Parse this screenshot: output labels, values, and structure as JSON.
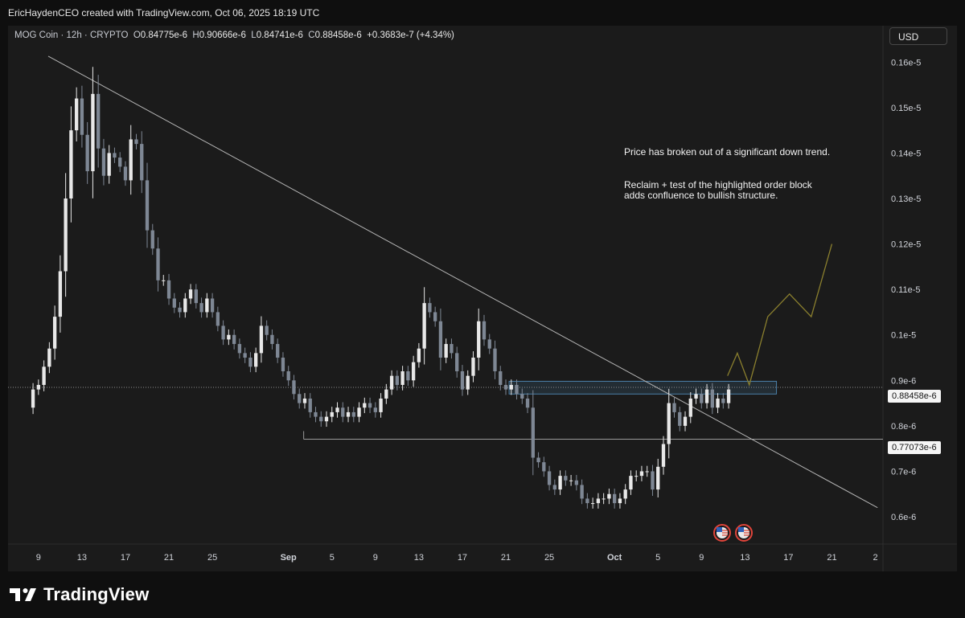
{
  "header": {
    "credit": "EricHaydenCEO created with TradingView.com, Oct 06, 2025 18:19 UTC"
  },
  "legend": {
    "symbol": "MOG Coin · 12h · CRYPTO",
    "o_key": "O",
    "o_val": "0.84775e-6",
    "h_key": "H",
    "h_val": "0.90666e-6",
    "l_key": "L",
    "l_val": "0.84741e-6",
    "c_key": "C",
    "c_val": "0.88458e-6",
    "change": "+0.3683e-7 (+4.34%)"
  },
  "currency_button": "USD",
  "annotations": {
    "note1": "Price has broken out of a significant down trend.",
    "note2_line1": "Reclaim + test of the highlighted order block",
    "note2_line2": "adds confluence to bullish structure."
  },
  "price_tags": {
    "current": "0.88458e-6",
    "level": "0.77073e-6"
  },
  "footer": {
    "brand": "TradingView"
  },
  "colors": {
    "up": "#e8e8e8",
    "down": "#7e8794",
    "projection": "#8a7f2e",
    "order_block": "#4a7fa8",
    "trendline": "#b5b5b5"
  },
  "chart_data": {
    "type": "candlestick",
    "symbol": "MOG Coin",
    "interval": "12h",
    "y_tick_labels": [
      "0.16e-5",
      "0.15e-5",
      "0.14e-5",
      "0.13e-5",
      "0.12e-5",
      "0.11e-5",
      "0.1e-5",
      "0.9e-6",
      "0.8e-6",
      "0.7e-6",
      "0.6e-6"
    ],
    "y_ticks": [
      1.6,
      1.5,
      1.4,
      1.3,
      1.2,
      1.1,
      1.0,
      0.9,
      0.8,
      0.7,
      0.6
    ],
    "y_unit": "e-6",
    "ylim": [
      0.54,
      1.68
    ],
    "x_tick_labels": [
      "9",
      "13",
      "17",
      "21",
      "25",
      "Sep",
      "5",
      "9",
      "13",
      "17",
      "21",
      "25",
      "Oct",
      "5",
      "9",
      "13",
      "17",
      "21",
      "2"
    ],
    "x_tick_days": [
      9,
      13,
      17,
      21,
      25,
      32,
      36,
      40,
      44,
      48,
      52,
      56,
      62,
      66,
      70,
      74,
      78,
      82,
      86
    ],
    "xlim": [
      6.2,
      86.7
    ],
    "close_series": [
      [
        8.0,
        0.84
      ],
      [
        8.5,
        0.88
      ],
      [
        9.0,
        0.89
      ],
      [
        9.5,
        0.93
      ],
      [
        10.0,
        0.97
      ],
      [
        10.5,
        1.04
      ],
      [
        11.0,
        1.14
      ],
      [
        11.5,
        1.3
      ],
      [
        12.0,
        1.45
      ],
      [
        12.5,
        1.52
      ],
      [
        13.0,
        1.44
      ],
      [
        13.5,
        1.36
      ],
      [
        14.0,
        1.53
      ],
      [
        14.5,
        1.41
      ],
      [
        15.0,
        1.35
      ],
      [
        15.5,
        1.4
      ],
      [
        16.0,
        1.39
      ],
      [
        16.5,
        1.37
      ],
      [
        17.0,
        1.34
      ],
      [
        17.5,
        1.43
      ],
      [
        18.0,
        1.42
      ],
      [
        18.5,
        1.34
      ],
      [
        19.0,
        1.23
      ],
      [
        19.5,
        1.19
      ],
      [
        20.0,
        1.12
      ],
      [
        20.5,
        1.12
      ],
      [
        21.0,
        1.08
      ],
      [
        21.5,
        1.06
      ],
      [
        22.0,
        1.05
      ],
      [
        22.5,
        1.08
      ],
      [
        23.0,
        1.1
      ],
      [
        23.5,
        1.07
      ],
      [
        24.0,
        1.05
      ],
      [
        24.5,
        1.08
      ],
      [
        25.0,
        1.05
      ],
      [
        25.5,
        1.02
      ],
      [
        26.0,
        0.99
      ],
      [
        26.5,
        1.0
      ],
      [
        27.0,
        0.98
      ],
      [
        27.5,
        0.96
      ],
      [
        28.0,
        0.95
      ],
      [
        28.5,
        0.93
      ],
      [
        29.0,
        0.96
      ],
      [
        29.5,
        1.02
      ],
      [
        30.0,
        1.0
      ],
      [
        30.5,
        0.98
      ],
      [
        31.0,
        0.95
      ],
      [
        31.5,
        0.92
      ],
      [
        32.0,
        0.9
      ],
      [
        32.5,
        0.87
      ],
      [
        33.0,
        0.85
      ],
      [
        33.5,
        0.86
      ],
      [
        34.0,
        0.83
      ],
      [
        34.5,
        0.82
      ],
      [
        35.0,
        0.81
      ],
      [
        35.5,
        0.82
      ],
      [
        36.0,
        0.83
      ],
      [
        36.5,
        0.84
      ],
      [
        37.0,
        0.82
      ],
      [
        37.5,
        0.83
      ],
      [
        38.0,
        0.82
      ],
      [
        38.5,
        0.84
      ],
      [
        39.0,
        0.85
      ],
      [
        39.5,
        0.84
      ],
      [
        40.0,
        0.83
      ],
      [
        40.5,
        0.86
      ],
      [
        41.0,
        0.88
      ],
      [
        41.5,
        0.91
      ],
      [
        42.0,
        0.89
      ],
      [
        42.5,
        0.92
      ],
      [
        43.0,
        0.9
      ],
      [
        43.5,
        0.94
      ],
      [
        44.0,
        0.97
      ],
      [
        44.5,
        1.07
      ],
      [
        45.0,
        1.05
      ],
      [
        45.5,
        1.03
      ],
      [
        46.0,
        0.95
      ],
      [
        46.5,
        0.98
      ],
      [
        47.0,
        0.96
      ],
      [
        47.5,
        0.92
      ],
      [
        48.0,
        0.88
      ],
      [
        48.5,
        0.91
      ],
      [
        49.0,
        0.95
      ],
      [
        49.5,
        1.03
      ],
      [
        50.0,
        0.99
      ],
      [
        50.5,
        0.97
      ],
      [
        51.0,
        0.92
      ],
      [
        51.5,
        0.89
      ],
      [
        52.0,
        0.88
      ],
      [
        52.5,
        0.89
      ],
      [
        53.0,
        0.87
      ],
      [
        53.5,
        0.86
      ],
      [
        54.0,
        0.84
      ],
      [
        54.5,
        0.73
      ],
      [
        55.0,
        0.72
      ],
      [
        55.5,
        0.7
      ],
      [
        56.0,
        0.67
      ],
      [
        56.5,
        0.66
      ],
      [
        57.0,
        0.69
      ],
      [
        57.5,
        0.68
      ],
      [
        58.0,
        0.68
      ],
      [
        58.5,
        0.67
      ],
      [
        59.0,
        0.64
      ],
      [
        59.5,
        0.63
      ],
      [
        60.0,
        0.63
      ],
      [
        60.5,
        0.64
      ],
      [
        61.0,
        0.64
      ],
      [
        61.5,
        0.65
      ],
      [
        62.0,
        0.63
      ],
      [
        62.5,
        0.64
      ],
      [
        63.0,
        0.66
      ],
      [
        63.5,
        0.69
      ],
      [
        64.0,
        0.69
      ],
      [
        64.5,
        0.7
      ],
      [
        65.0,
        0.7
      ],
      [
        65.5,
        0.66
      ],
      [
        66.0,
        0.71
      ],
      [
        66.5,
        0.76
      ],
      [
        67.0,
        0.85
      ],
      [
        67.5,
        0.83
      ],
      [
        68.0,
        0.8
      ],
      [
        68.5,
        0.82
      ],
      [
        69.0,
        0.86
      ],
      [
        69.5,
        0.87
      ],
      [
        70.0,
        0.85
      ],
      [
        70.5,
        0.88
      ],
      [
        71.0,
        0.84
      ],
      [
        71.5,
        0.86
      ],
      [
        72.0,
        0.85
      ],
      [
        72.5,
        0.88
      ]
    ],
    "last_close": 0.88458,
    "trendline": {
      "x": [
        9.9,
        86.2
      ],
      "y": [
        1.613,
        0.62
      ]
    },
    "horizontal_levels": [
      {
        "x_start": 33.4,
        "x_end": 86.7,
        "y": 0.77073
      },
      {
        "x_start": 6.2,
        "x_end": 86.7,
        "y": 0.88458
      }
    ],
    "order_block": {
      "x_start": 52.3,
      "x_end": 76.9,
      "y_low": 0.87,
      "y_high": 0.898
    },
    "projection_path": {
      "x": [
        72.4,
        73.3,
        74.4,
        76.1,
        78.1,
        80.1,
        82.0
      ],
      "y": [
        0.91,
        0.96,
        0.89,
        1.04,
        1.09,
        1.04,
        1.2
      ]
    },
    "event_markers": [
      71.9,
      73.9
    ],
    "grid": false,
    "legend_position": "top-left"
  }
}
